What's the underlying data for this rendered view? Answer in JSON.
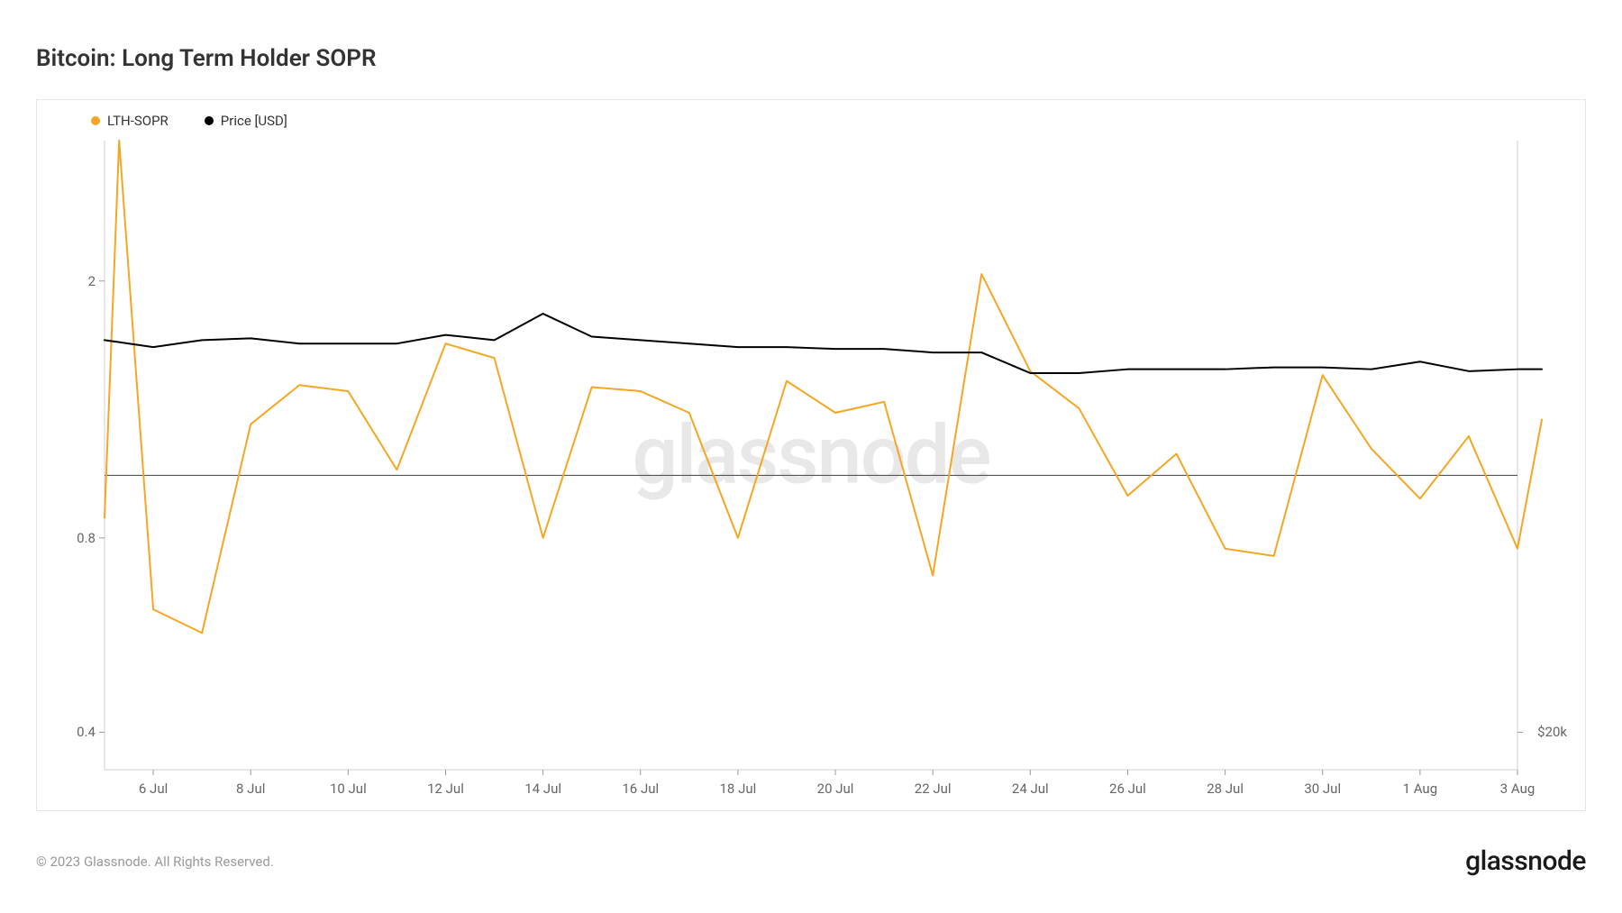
{
  "title": "Bitcoin: Long Term Holder SOPR",
  "legend": {
    "series1": {
      "label": "LTH-SOPR",
      "color": "#f5a623"
    },
    "series2": {
      "label": "Price [USD]",
      "color": "#000000"
    }
  },
  "chart": {
    "type": "line",
    "background_color": "#ffffff",
    "border_color": "#e5e5e5",
    "grid_color": "#f0f0f0",
    "watermark_text": "glassnode",
    "watermark_color": "#e8e8e8",
    "y_axis": {
      "scale": "log",
      "min": 0.35,
      "max": 3.3,
      "ticks": [
        {
          "value": 0.4,
          "label": "0.4"
        },
        {
          "value": 0.8,
          "label": "0.8"
        },
        {
          "value": 2,
          "label": "2"
        }
      ],
      "reference_line": {
        "value": 1.0,
        "color": "#555555",
        "width": 1.2
      }
    },
    "y2_axis": {
      "ticks": [
        {
          "y_value_on_left_scale": 0.4,
          "label": "$20k"
        }
      ]
    },
    "x_axis": {
      "min": 0,
      "max": 29,
      "ticks": [
        {
          "value": 1,
          "label": "6 Jul"
        },
        {
          "value": 3,
          "label": "8 Jul"
        },
        {
          "value": 5,
          "label": "10 Jul"
        },
        {
          "value": 7,
          "label": "12 Jul"
        },
        {
          "value": 9,
          "label": "14 Jul"
        },
        {
          "value": 11,
          "label": "16 Jul"
        },
        {
          "value": 13,
          "label": "18 Jul"
        },
        {
          "value": 15,
          "label": "20 Jul"
        },
        {
          "value": 17,
          "label": "22 Jul"
        },
        {
          "value": 19,
          "label": "24 Jul"
        },
        {
          "value": 21,
          "label": "26 Jul"
        },
        {
          "value": 23,
          "label": "28 Jul"
        },
        {
          "value": 25,
          "label": "30 Jul"
        },
        {
          "value": 27,
          "label": "1 Aug"
        },
        {
          "value": 29,
          "label": "3 Aug"
        }
      ]
    },
    "series": {
      "lth_sopr": {
        "color": "#f5a623",
        "width": 2,
        "data": [
          [
            0,
            0.86
          ],
          [
            0.3,
            3.3
          ],
          [
            1,
            0.62
          ],
          [
            2,
            0.57
          ],
          [
            3,
            1.2
          ],
          [
            4,
            1.38
          ],
          [
            5,
            1.35
          ],
          [
            6,
            1.02
          ],
          [
            7,
            1.6
          ],
          [
            8,
            1.52
          ],
          [
            9,
            0.8
          ],
          [
            10,
            1.37
          ],
          [
            11,
            1.35
          ],
          [
            12,
            1.25
          ],
          [
            13,
            0.8
          ],
          [
            14,
            1.4
          ],
          [
            15,
            1.25
          ],
          [
            16,
            1.3
          ],
          [
            17,
            0.7
          ],
          [
            18,
            2.05
          ],
          [
            19,
            1.45
          ],
          [
            20,
            1.27
          ],
          [
            21,
            0.93
          ],
          [
            22,
            1.08
          ],
          [
            23,
            0.77
          ],
          [
            24,
            0.75
          ],
          [
            25,
            1.43
          ],
          [
            26,
            1.1
          ],
          [
            27,
            0.92
          ],
          [
            28,
            1.15
          ],
          [
            29,
            0.77
          ],
          [
            29.5,
            1.22
          ]
        ]
      },
      "price": {
        "color": "#000000",
        "width": 2,
        "data": [
          [
            0,
            1.62
          ],
          [
            1,
            1.58
          ],
          [
            2,
            1.62
          ],
          [
            3,
            1.63
          ],
          [
            4,
            1.6
          ],
          [
            5,
            1.6
          ],
          [
            6,
            1.6
          ],
          [
            7,
            1.65
          ],
          [
            8,
            1.62
          ],
          [
            9,
            1.78
          ],
          [
            10,
            1.64
          ],
          [
            11,
            1.62
          ],
          [
            12,
            1.6
          ],
          [
            13,
            1.58
          ],
          [
            14,
            1.58
          ],
          [
            15,
            1.57
          ],
          [
            16,
            1.57
          ],
          [
            17,
            1.55
          ],
          [
            18,
            1.55
          ],
          [
            19,
            1.44
          ],
          [
            20,
            1.44
          ],
          [
            21,
            1.46
          ],
          [
            22,
            1.46
          ],
          [
            23,
            1.46
          ],
          [
            24,
            1.47
          ],
          [
            25,
            1.47
          ],
          [
            26,
            1.46
          ],
          [
            27,
            1.5
          ],
          [
            28,
            1.45
          ],
          [
            29,
            1.46
          ],
          [
            29.5,
            1.46
          ]
        ]
      }
    }
  },
  "footer": {
    "copyright": "© 2023 Glassnode. All Rights Reserved.",
    "brand": "glassnode"
  }
}
